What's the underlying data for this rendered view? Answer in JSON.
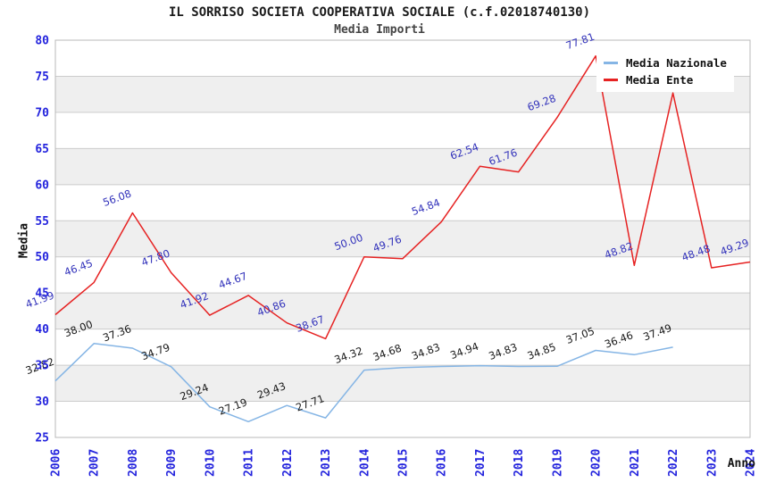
{
  "header": {
    "title": "IL SORRISO SOCIETA COOPERATIVA SOCIALE (c.f.02018740130)",
    "subtitle": "Media Importi"
  },
  "axes": {
    "y_title": "Media",
    "x_title": "Anno",
    "y_ticks": [
      25,
      30,
      35,
      40,
      45,
      50,
      55,
      60,
      65,
      70,
      75,
      80
    ]
  },
  "legend": {
    "items": [
      {
        "label": "Media Nazionale",
        "color": "#85b5e5"
      },
      {
        "label": "Media Ente",
        "color": "#e62222"
      }
    ]
  },
  "style": {
    "tick_label_color": "#2424dd",
    "grid_color": "#cccccc",
    "band_color": "#efefef",
    "border_color": "#b8b8b8",
    "background": "#ffffff"
  },
  "chart_data": {
    "type": "line",
    "title": "IL SORRISO SOCIETA COOPERATIVA SOCIALE (c.f.02018740130)",
    "subtitle": "Media Importi",
    "xlabel": "Anno",
    "ylabel": "Media",
    "ylim": [
      25,
      80
    ],
    "grid": "horizontal",
    "legend_position": "top-right",
    "gray_bands": [
      [
        30,
        35
      ],
      [
        40,
        45
      ],
      [
        50,
        55
      ],
      [
        60,
        65
      ],
      [
        70,
        75
      ]
    ],
    "x": [
      "2006",
      "2007",
      "2008",
      "2009",
      "2010",
      "2011",
      "2012",
      "2013",
      "2014",
      "2015",
      "2016",
      "2017",
      "2018",
      "2019",
      "2020",
      "2021",
      "2022",
      "2023",
      "2024"
    ],
    "series": [
      {
        "name": "Media Nazionale",
        "color": "#85b5e5",
        "label_color": "#1a1a1a",
        "values": [
          32.82,
          38.0,
          37.36,
          34.79,
          29.24,
          27.19,
          29.43,
          27.71,
          34.32,
          34.68,
          34.83,
          34.94,
          34.83,
          34.85,
          37.05,
          36.46,
          37.49,
          null,
          null
        ]
      },
      {
        "name": "Media Ente",
        "color": "#e62222",
        "label_color": "#3333bb",
        "values": [
          41.99,
          46.45,
          56.08,
          47.8,
          41.92,
          44.67,
          40.86,
          38.67,
          50.0,
          49.76,
          54.84,
          62.54,
          61.76,
          69.28,
          77.81,
          48.82,
          72.7,
          48.48,
          49.29
        ],
        "unlabeled_indices": [
          16
        ]
      }
    ]
  }
}
